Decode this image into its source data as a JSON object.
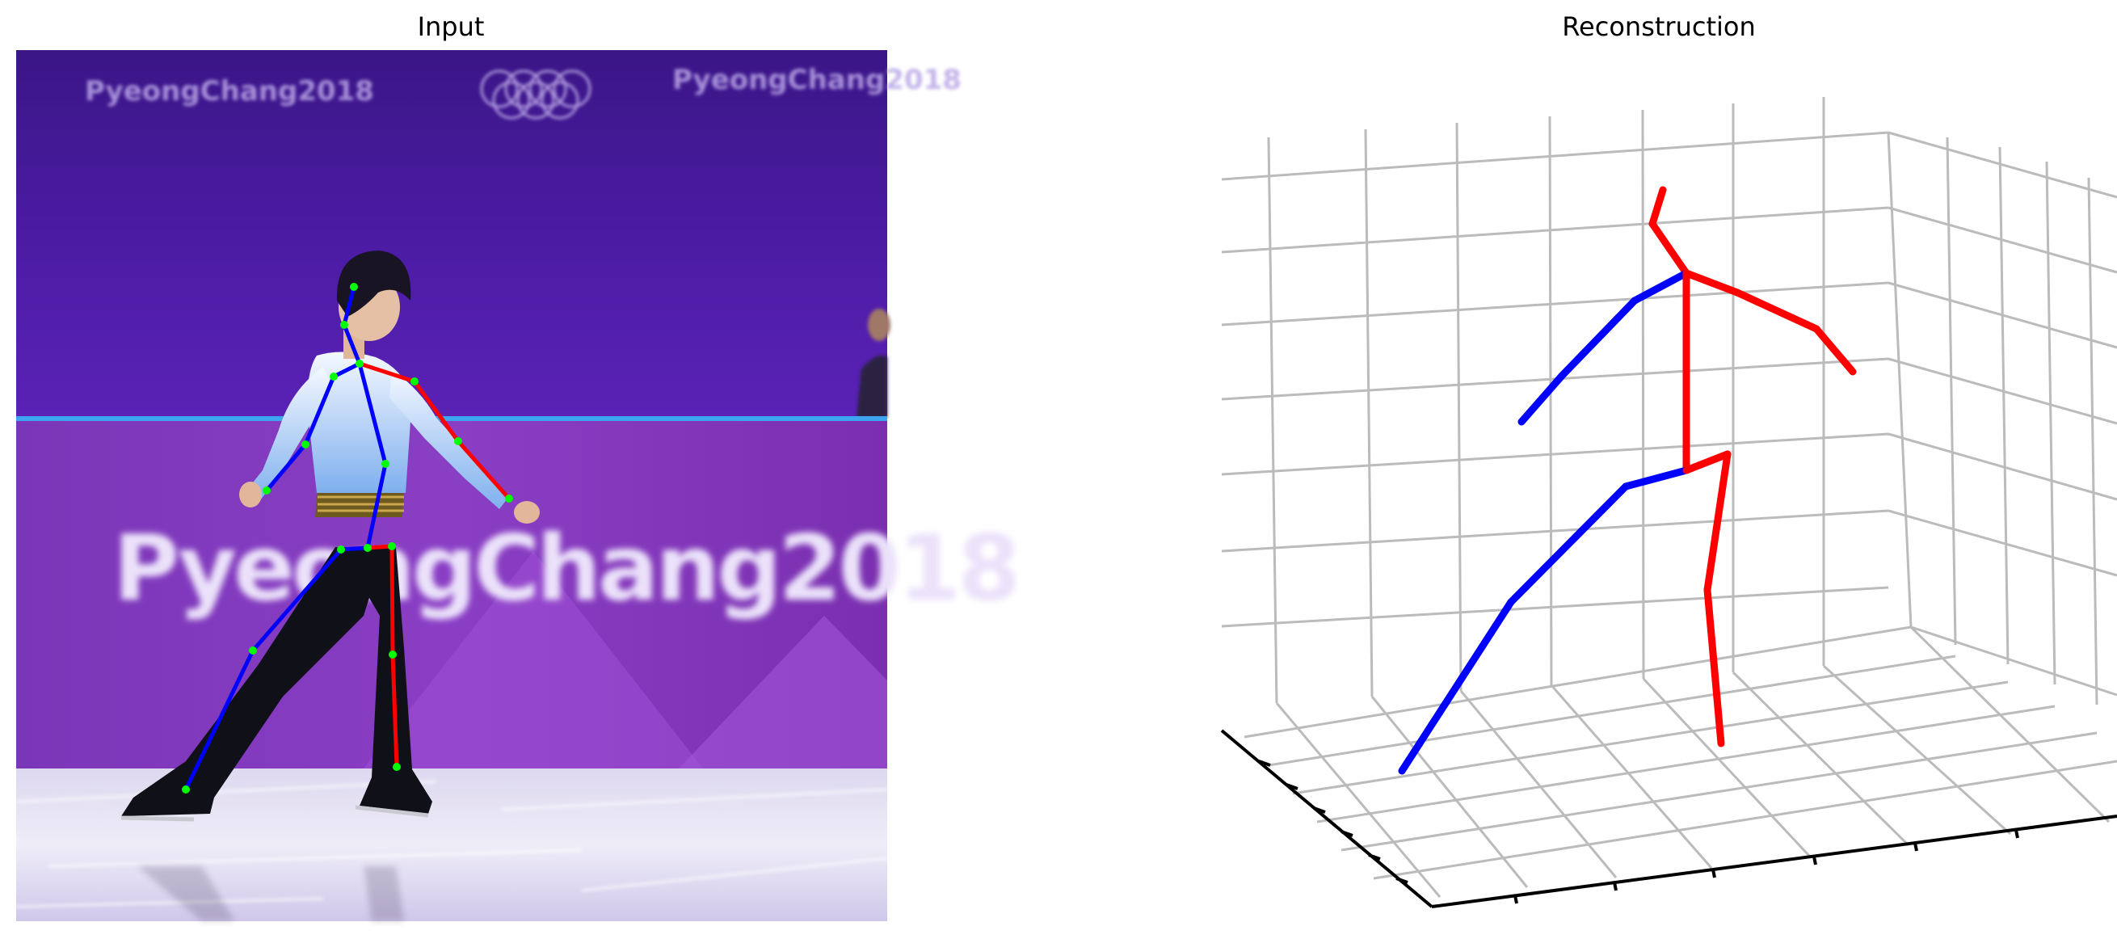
{
  "figure": {
    "titles": {
      "input": "Input",
      "reconstruction": "Reconstruction"
    }
  },
  "input_image": {
    "banner_text_top": "PyeongChang2018",
    "banner_text_main": "PyeongChang2018",
    "skeleton_colors": {
      "left": "#0000ff",
      "right": "#ff0000",
      "joint": "#00ff00"
    }
  },
  "reconstruction": {
    "grid_color": "#bbbbbb",
    "axis_color": "#000000",
    "skeleton_colors": {
      "left": "#0000ff",
      "right": "#ff0000"
    }
  }
}
